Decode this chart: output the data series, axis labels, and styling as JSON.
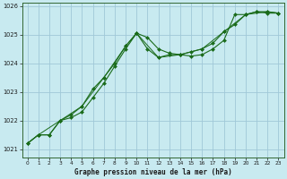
{
  "title": "Graphe pression niveau de la mer (hPa)",
  "background_color": "#c8eaf0",
  "grid_color": "#a0c8d8",
  "line_color": "#1a6b1a",
  "marker_color": "#1a6b1a",
  "xlim": [
    -0.5,
    23.5
  ],
  "ylim": [
    1020.7,
    1026.1
  ],
  "xticks": [
    0,
    1,
    2,
    3,
    4,
    5,
    6,
    7,
    8,
    9,
    10,
    11,
    12,
    13,
    14,
    15,
    16,
    17,
    18,
    19,
    20,
    21,
    22,
    23
  ],
  "yticks": [
    1021,
    1022,
    1023,
    1024,
    1025,
    1026
  ],
  "series1": [
    [
      0,
      1021.2
    ],
    [
      1,
      1021.5
    ],
    [
      2,
      1021.5
    ],
    [
      3,
      1022.0
    ],
    [
      4,
      1022.1
    ],
    [
      5,
      1022.3
    ],
    [
      6,
      1022.8
    ],
    [
      7,
      1023.3
    ],
    [
      8,
      1023.9
    ],
    [
      9,
      1024.5
    ],
    [
      10,
      1025.05
    ],
    [
      11,
      1024.9
    ],
    [
      12,
      1024.5
    ],
    [
      13,
      1024.35
    ],
    [
      14,
      1024.3
    ],
    [
      15,
      1024.25
    ],
    [
      16,
      1024.3
    ],
    [
      17,
      1024.5
    ],
    [
      18,
      1024.8
    ],
    [
      19,
      1025.7
    ],
    [
      20,
      1025.7
    ],
    [
      21,
      1025.8
    ],
    [
      22,
      1025.75
    ],
    [
      23,
      1025.75
    ]
  ],
  "series2": [
    [
      0,
      1021.2
    ],
    [
      1,
      1021.5
    ],
    [
      2,
      1021.5
    ],
    [
      3,
      1022.0
    ],
    [
      4,
      1022.2
    ],
    [
      5,
      1022.5
    ],
    [
      6,
      1023.1
    ],
    [
      7,
      1023.5
    ],
    [
      8,
      1024.0
    ],
    [
      9,
      1024.6
    ],
    [
      10,
      1025.05
    ],
    [
      11,
      1024.5
    ],
    [
      12,
      1024.2
    ],
    [
      13,
      1024.3
    ],
    [
      14,
      1024.3
    ],
    [
      15,
      1024.4
    ],
    [
      16,
      1024.5
    ],
    [
      17,
      1024.7
    ],
    [
      18,
      1025.1
    ],
    [
      19,
      1025.35
    ],
    [
      20,
      1025.7
    ],
    [
      21,
      1025.8
    ],
    [
      22,
      1025.8
    ],
    [
      23,
      1025.75
    ]
  ],
  "series3": [
    [
      0,
      1021.2
    ],
    [
      1,
      1021.5
    ],
    [
      3,
      1022.0
    ],
    [
      5,
      1022.5
    ],
    [
      7,
      1023.5
    ],
    [
      9,
      1024.6
    ],
    [
      10,
      1025.05
    ],
    [
      12,
      1024.2
    ],
    [
      14,
      1024.3
    ],
    [
      16,
      1024.5
    ],
    [
      18,
      1025.1
    ],
    [
      20,
      1025.7
    ],
    [
      22,
      1025.8
    ],
    [
      23,
      1025.75
    ]
  ]
}
